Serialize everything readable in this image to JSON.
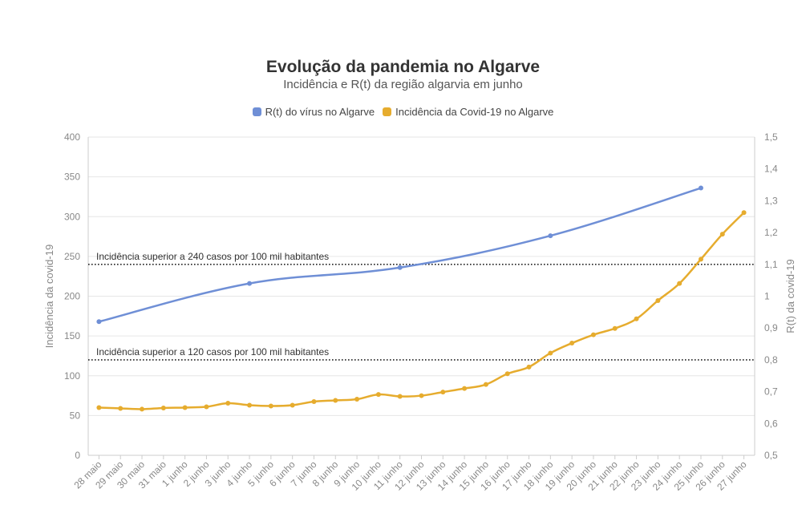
{
  "chart_data": {
    "type": "line",
    "title": "Evolução da pandemia no Algarve",
    "subtitle": "Incidência e R(t) da região algarvia em junho",
    "ylabel_left": "Incidência da covid-19",
    "ylabel_right": "R(t) da covid-19",
    "ylim_left": [
      0,
      400
    ],
    "yticks_left": [
      0,
      50,
      100,
      150,
      200,
      250,
      300,
      350,
      400
    ],
    "ylim_right": [
      0.5,
      1.5
    ],
    "yticks_right": [
      0.5,
      0.6,
      0.7,
      0.8,
      0.9,
      1.0,
      1.1,
      1.2,
      1.3,
      1.4,
      1.5
    ],
    "yticks_right_labels": [
      "0,5",
      "0,6",
      "0,7",
      "0,8",
      "0,9",
      "1",
      "1,1",
      "1,2",
      "1,3",
      "1,4",
      "1,5"
    ],
    "categories": [
      "28 maio",
      "29 maio",
      "30 maio",
      "31 maio",
      "1 junho",
      "2 junho",
      "3 junho",
      "4 junho",
      "5 junho",
      "6 junho",
      "7 junho",
      "8 junho",
      "9 junho",
      "10 junho",
      "11 junho",
      "12 junho",
      "13 junho",
      "14 junho",
      "15 junho",
      "16 junho",
      "17 junho",
      "18 junho",
      "19 junho",
      "20 junho",
      "21 junho",
      "22 junho",
      "23 junho",
      "24 junho",
      "25 junho",
      "26 junho",
      "27 junho"
    ],
    "series": [
      {
        "name": "R(t) do vírus no Algarve",
        "axis": "right",
        "color": "#6f8fd6",
        "values": [
          0.92,
          null,
          null,
          null,
          null,
          null,
          null,
          1.04,
          null,
          null,
          null,
          null,
          null,
          null,
          1.09,
          null,
          null,
          null,
          null,
          null,
          null,
          1.19,
          null,
          null,
          null,
          null,
          null,
          null,
          1.34,
          null,
          null
        ]
      },
      {
        "name": "Incidência da Covid-19 no Algarve",
        "axis": "left",
        "color": "#e6ac2e",
        "values": [
          60,
          59,
          58,
          59.5,
          60,
          61,
          65.5,
          63,
          62,
          63,
          67.5,
          69,
          70.5,
          76.5,
          74,
          75,
          79.5,
          84,
          89,
          102.5,
          111,
          128.5,
          141,
          151.5,
          159.5,
          171.5,
          194.5,
          216,
          246.5,
          278,
          305
        ]
      }
    ],
    "reference_lines": [
      {
        "value": 240,
        "label": "Incidência superior a 240 casos por 100 mil habitantes"
      },
      {
        "value": 120,
        "label": "Incidência superior a 120 casos por 100 mil habitantes"
      }
    ]
  }
}
